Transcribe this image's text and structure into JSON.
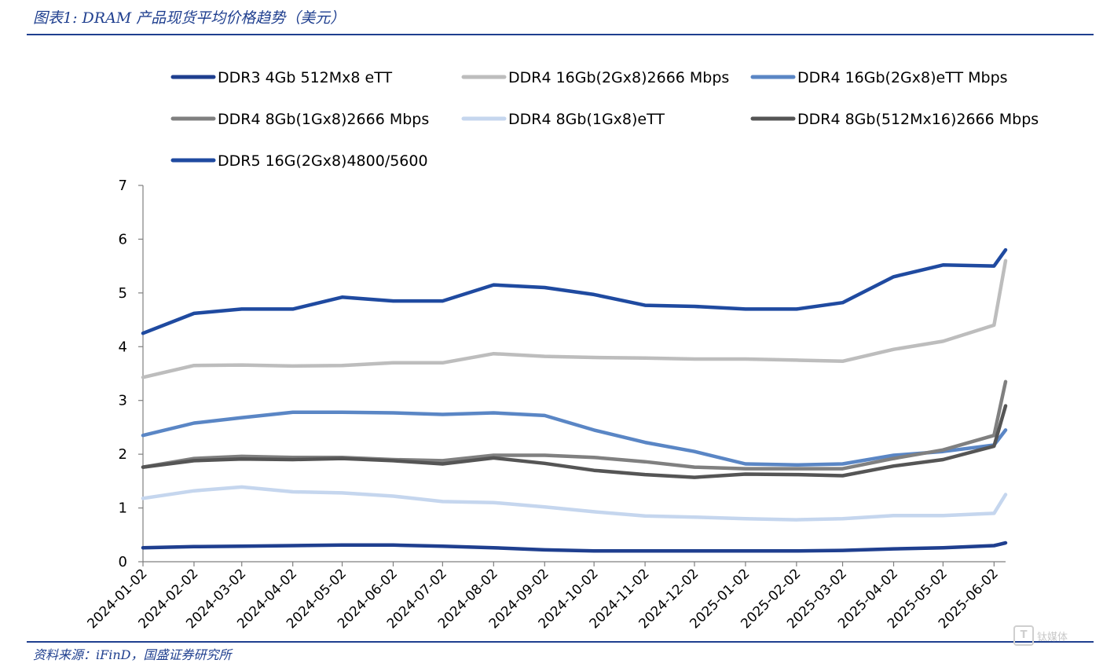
{
  "header": {
    "title": "图表1: DRAM 产品现货平均价格趋势（美元）"
  },
  "footer": {
    "source": "资料来源：iFinD，国盛证券研究所"
  },
  "watermark": {
    "icon": "T",
    "text": "钛媒体"
  },
  "chart_data": {
    "type": "line",
    "ylim": [
      0,
      7
    ],
    "yticks": [
      "0",
      "1",
      "2",
      "3",
      "4",
      "5",
      "6",
      "7"
    ],
    "grid": false,
    "legend_position": "top",
    "x_tick_labels": [
      "2024-01-02",
      "2024-02-02",
      "2024-03-02",
      "2024-04-02",
      "2024-05-02",
      "2024-06-02",
      "2024-07-02",
      "2024-08-02",
      "2024-09-02",
      "2024-10-02",
      "2024-11-02",
      "2024-12-02",
      "2025-01-02",
      "2025-02-02",
      "2025-03-02",
      "2025-04-02",
      "2025-05-02",
      "2025-06-02"
    ],
    "x": [
      "2024-01-02",
      "2024-02-02",
      "2024-03-02",
      "2024-04-02",
      "2024-05-02",
      "2024-06-02",
      "2024-07-02",
      "2024-08-02",
      "2024-09-02",
      "2024-10-02",
      "2024-11-02",
      "2024-12-02",
      "2025-01-02",
      "2025-02-02",
      "2025-03-02",
      "2025-04-02",
      "2025-05-02",
      "2025-06-02",
      "2025-06-09"
    ],
    "series": [
      {
        "name": "DDR3 4Gb 512Mx8 eTT",
        "color": "#1f3f8f",
        "values": [
          0.26,
          0.28,
          0.29,
          0.3,
          0.31,
          0.31,
          0.29,
          0.26,
          0.22,
          0.2,
          0.2,
          0.2,
          0.2,
          0.2,
          0.21,
          0.24,
          0.26,
          0.3,
          0.35
        ]
      },
      {
        "name": "DDR4 16Gb(2Gx8)2666 Mbps",
        "color": "#bdbdbd",
        "values": [
          3.43,
          3.65,
          3.66,
          3.64,
          3.65,
          3.7,
          3.7,
          3.87,
          3.82,
          3.8,
          3.79,
          3.77,
          3.77,
          3.75,
          3.73,
          3.95,
          4.1,
          4.4,
          5.6
        ]
      },
      {
        "name": "DDR4 16Gb(2Gx8)eTT Mbps",
        "color": "#5a86c5",
        "values": [
          2.35,
          2.58,
          2.68,
          2.78,
          2.78,
          2.77,
          2.74,
          2.77,
          2.72,
          2.45,
          2.22,
          2.05,
          1.82,
          1.8,
          1.82,
          1.98,
          2.05,
          2.17,
          2.45
        ]
      },
      {
        "name": "DDR4 8Gb(1Gx8)2666 Mbps",
        "color": "#808080",
        "values": [
          1.76,
          1.92,
          1.96,
          1.94,
          1.94,
          1.9,
          1.88,
          1.98,
          1.98,
          1.94,
          1.86,
          1.76,
          1.73,
          1.73,
          1.73,
          1.92,
          2.08,
          2.35,
          3.35
        ]
      },
      {
        "name": "DDR4 8Gb(1Gx8)eTT",
        "color": "#c5d6ee",
        "values": [
          1.18,
          1.32,
          1.39,
          1.3,
          1.28,
          1.22,
          1.12,
          1.1,
          1.02,
          0.93,
          0.85,
          0.83,
          0.8,
          0.78,
          0.8,
          0.86,
          0.86,
          0.9,
          1.25
        ]
      },
      {
        "name": "DDR4 8Gb(512Mx16)2666 Mbps",
        "color": "#555555",
        "values": [
          1.76,
          1.88,
          1.91,
          1.9,
          1.92,
          1.88,
          1.82,
          1.93,
          1.83,
          1.7,
          1.62,
          1.57,
          1.63,
          1.62,
          1.6,
          1.78,
          1.9,
          2.15,
          2.9
        ]
      },
      {
        "name": "DDR5 16G(2Gx8)4800/5600",
        "color": "#1f4aa0",
        "values": [
          4.25,
          4.62,
          4.7,
          4.7,
          4.92,
          4.85,
          4.85,
          5.15,
          5.1,
          4.97,
          4.77,
          4.75,
          4.7,
          4.7,
          4.82,
          5.3,
          5.52,
          5.5,
          5.8
        ]
      }
    ]
  }
}
